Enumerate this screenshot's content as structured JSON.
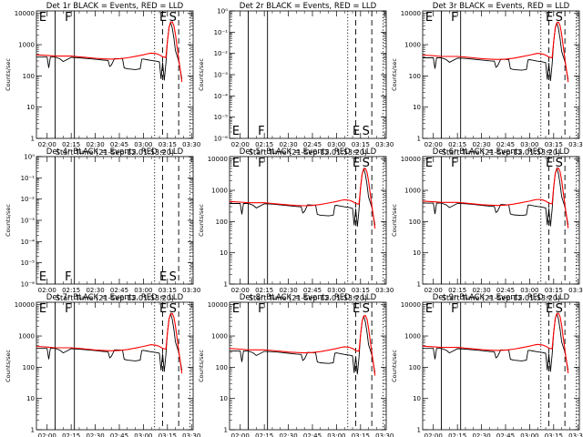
{
  "chart_data": {
    "type": "line",
    "common": {
      "xlabel": "Start Time (21-Sep-12 01:53:20)",
      "ylabel": "Counts/sec",
      "x_tick_labels": [
        "02:00",
        "02:15",
        "02:30",
        "02:45",
        "03:00",
        "03:15",
        "03:30"
      ],
      "x_range": [
        "01:53:20",
        "03:31:00"
      ],
      "y_scale": "log",
      "legend": "BLACK = Events, RED = LLD",
      "series": [
        {
          "name": "Events",
          "color": "#000000"
        },
        {
          "name": "LLD",
          "color": "#ff0000"
        }
      ],
      "solid_vlines": [
        "02:05",
        "02:17"
      ],
      "dotted_vlines": [
        "03:07",
        "03:29"
      ],
      "dashed_vlines": [
        "03:12",
        "03:22"
      ],
      "markers": [
        {
          "label": "E",
          "time": "01:55"
        },
        {
          "label": "F",
          "time": "02:11"
        },
        {
          "label": "E",
          "time": "03:10"
        },
        {
          "label": "S",
          "time": "03:16"
        }
      ],
      "event_shape": {
        "time": [
          "01:53:20",
          "02:00",
          "02:01",
          "02:02",
          "02:05",
          "02:08",
          "02:10",
          "02:15",
          "02:20",
          "02:25",
          "02:30",
          "02:35",
          "02:38",
          "02:39",
          "02:40",
          "02:42",
          "02:47",
          "02:48",
          "02:50",
          "02:55",
          "02:58",
          "02:59",
          "03:00",
          "03:02",
          "03:05",
          "03:08",
          "03:10",
          "03:11",
          "03:12",
          "03:13",
          "03:14",
          "03:15",
          "03:16",
          "03:17",
          "03:18",
          "03:19",
          "03:20",
          "03:22",
          "03:24"
        ],
        "factor": [
          1.0,
          1.0,
          0.45,
          1.0,
          1.0,
          0.88,
          0.72,
          0.98,
          0.95,
          0.9,
          0.85,
          0.8,
          0.78,
          0.5,
          0.55,
          0.9,
          0.88,
          0.45,
          0.42,
          0.4,
          0.42,
          0.85,
          0.87,
          0.83,
          0.78,
          0.74,
          0.7,
          0.2,
          0.68,
          0.18,
          0.62,
          3.2,
          9.0,
          13.0,
          8.5,
          4.0,
          1.6,
          0.75,
          0.2
        ]
      },
      "lld_shape": {
        "time": [
          "01:53:20",
          "02:00",
          "02:05",
          "02:10",
          "02:15",
          "02:20",
          "02:25",
          "02:30",
          "02:35",
          "02:40",
          "02:45",
          "02:50",
          "02:55",
          "03:00",
          "03:03",
          "03:05",
          "03:08",
          "03:10",
          "03:12",
          "03:14",
          "03:15",
          "03:16",
          "03:17",
          "03:18",
          "03:19",
          "03:20",
          "03:21",
          "03:22",
          "03:24"
        ],
        "factor": [
          1.1,
          1.05,
          1.0,
          1.0,
          1.0,
          0.95,
          0.9,
          0.85,
          0.82,
          0.8,
          0.82,
          0.88,
          0.98,
          1.1,
          1.2,
          1.25,
          1.2,
          1.1,
          0.95,
          0.9,
          3.0,
          8.5,
          12.0,
          12.5,
          9.5,
          5.0,
          2.0,
          0.8,
          0.15
        ]
      }
    },
    "panels": [
      {
        "title": "Det 1r  BLACK = Events, RED = LLD",
        "y_ticks": [
          "1",
          "10",
          "100",
          "1000",
          "10000"
        ],
        "ylim": [
          1,
          12000
        ],
        "has_data": true,
        "base_events": 400,
        "base_lld": 430
      },
      {
        "title": "Det 2r  BLACK = Events, RED = LLD",
        "y_ticks": [
          "10⁻⁶",
          "10⁻⁵",
          "10⁻⁴",
          "10⁻³",
          "10⁻²",
          "10⁻¹",
          "10⁰"
        ],
        "ylim": [
          1e-06,
          1
        ],
        "has_data": false
      },
      {
        "title": "Det 3r  BLACK = Events, RED = LLD",
        "y_ticks": [
          "1",
          "10",
          "100",
          "1000",
          "10000"
        ],
        "ylim": [
          1,
          12000
        ],
        "has_data": true,
        "base_events": 380,
        "base_lld": 420
      },
      {
        "title": "Det 4r  BLACK = Events, RED = LLD",
        "y_ticks": [
          "10⁻⁶",
          "10⁻⁵",
          "10⁻⁴",
          "10⁻³",
          "10⁻²",
          "10⁻¹",
          "10⁰"
        ],
        "ylim": [
          1e-06,
          1
        ],
        "has_data": false
      },
      {
        "title": "Det 5r  BLACK = Events, RED = LLD",
        "y_ticks": [
          "1",
          "10",
          "100",
          "1000",
          "10000"
        ],
        "ylim": [
          1,
          12000
        ],
        "has_data": true,
        "base_events": 380,
        "base_lld": 400
      },
      {
        "title": "Det 6r  BLACK = Events, RED = LLD",
        "y_ticks": [
          "1",
          "10",
          "100",
          "1000",
          "10000"
        ],
        "ylim": [
          1,
          12000
        ],
        "has_data": true,
        "base_events": 390,
        "base_lld": 410
      },
      {
        "title": "Det 7r  BLACK = Events, RED = LLD",
        "y_ticks": [
          "1",
          "10",
          "100",
          "1000",
          "10000"
        ],
        "ylim": [
          1,
          12000
        ],
        "has_data": true,
        "base_events": 400,
        "base_lld": 420
      },
      {
        "title": "Det 8r  BLACK = Events, RED = LLD",
        "y_ticks": [
          "1",
          "10",
          "100",
          "1000",
          "10000"
        ],
        "ylim": [
          1,
          12000
        ],
        "has_data": true,
        "base_events": 330,
        "base_lld": 360
      },
      {
        "title": "Det 9r  BLACK = Events, RED = LLD",
        "y_ticks": [
          "1",
          "10",
          "100",
          "1000",
          "10000"
        ],
        "ylim": [
          1,
          12000
        ],
        "has_data": true,
        "base_events": 400,
        "base_lld": 430
      }
    ]
  }
}
